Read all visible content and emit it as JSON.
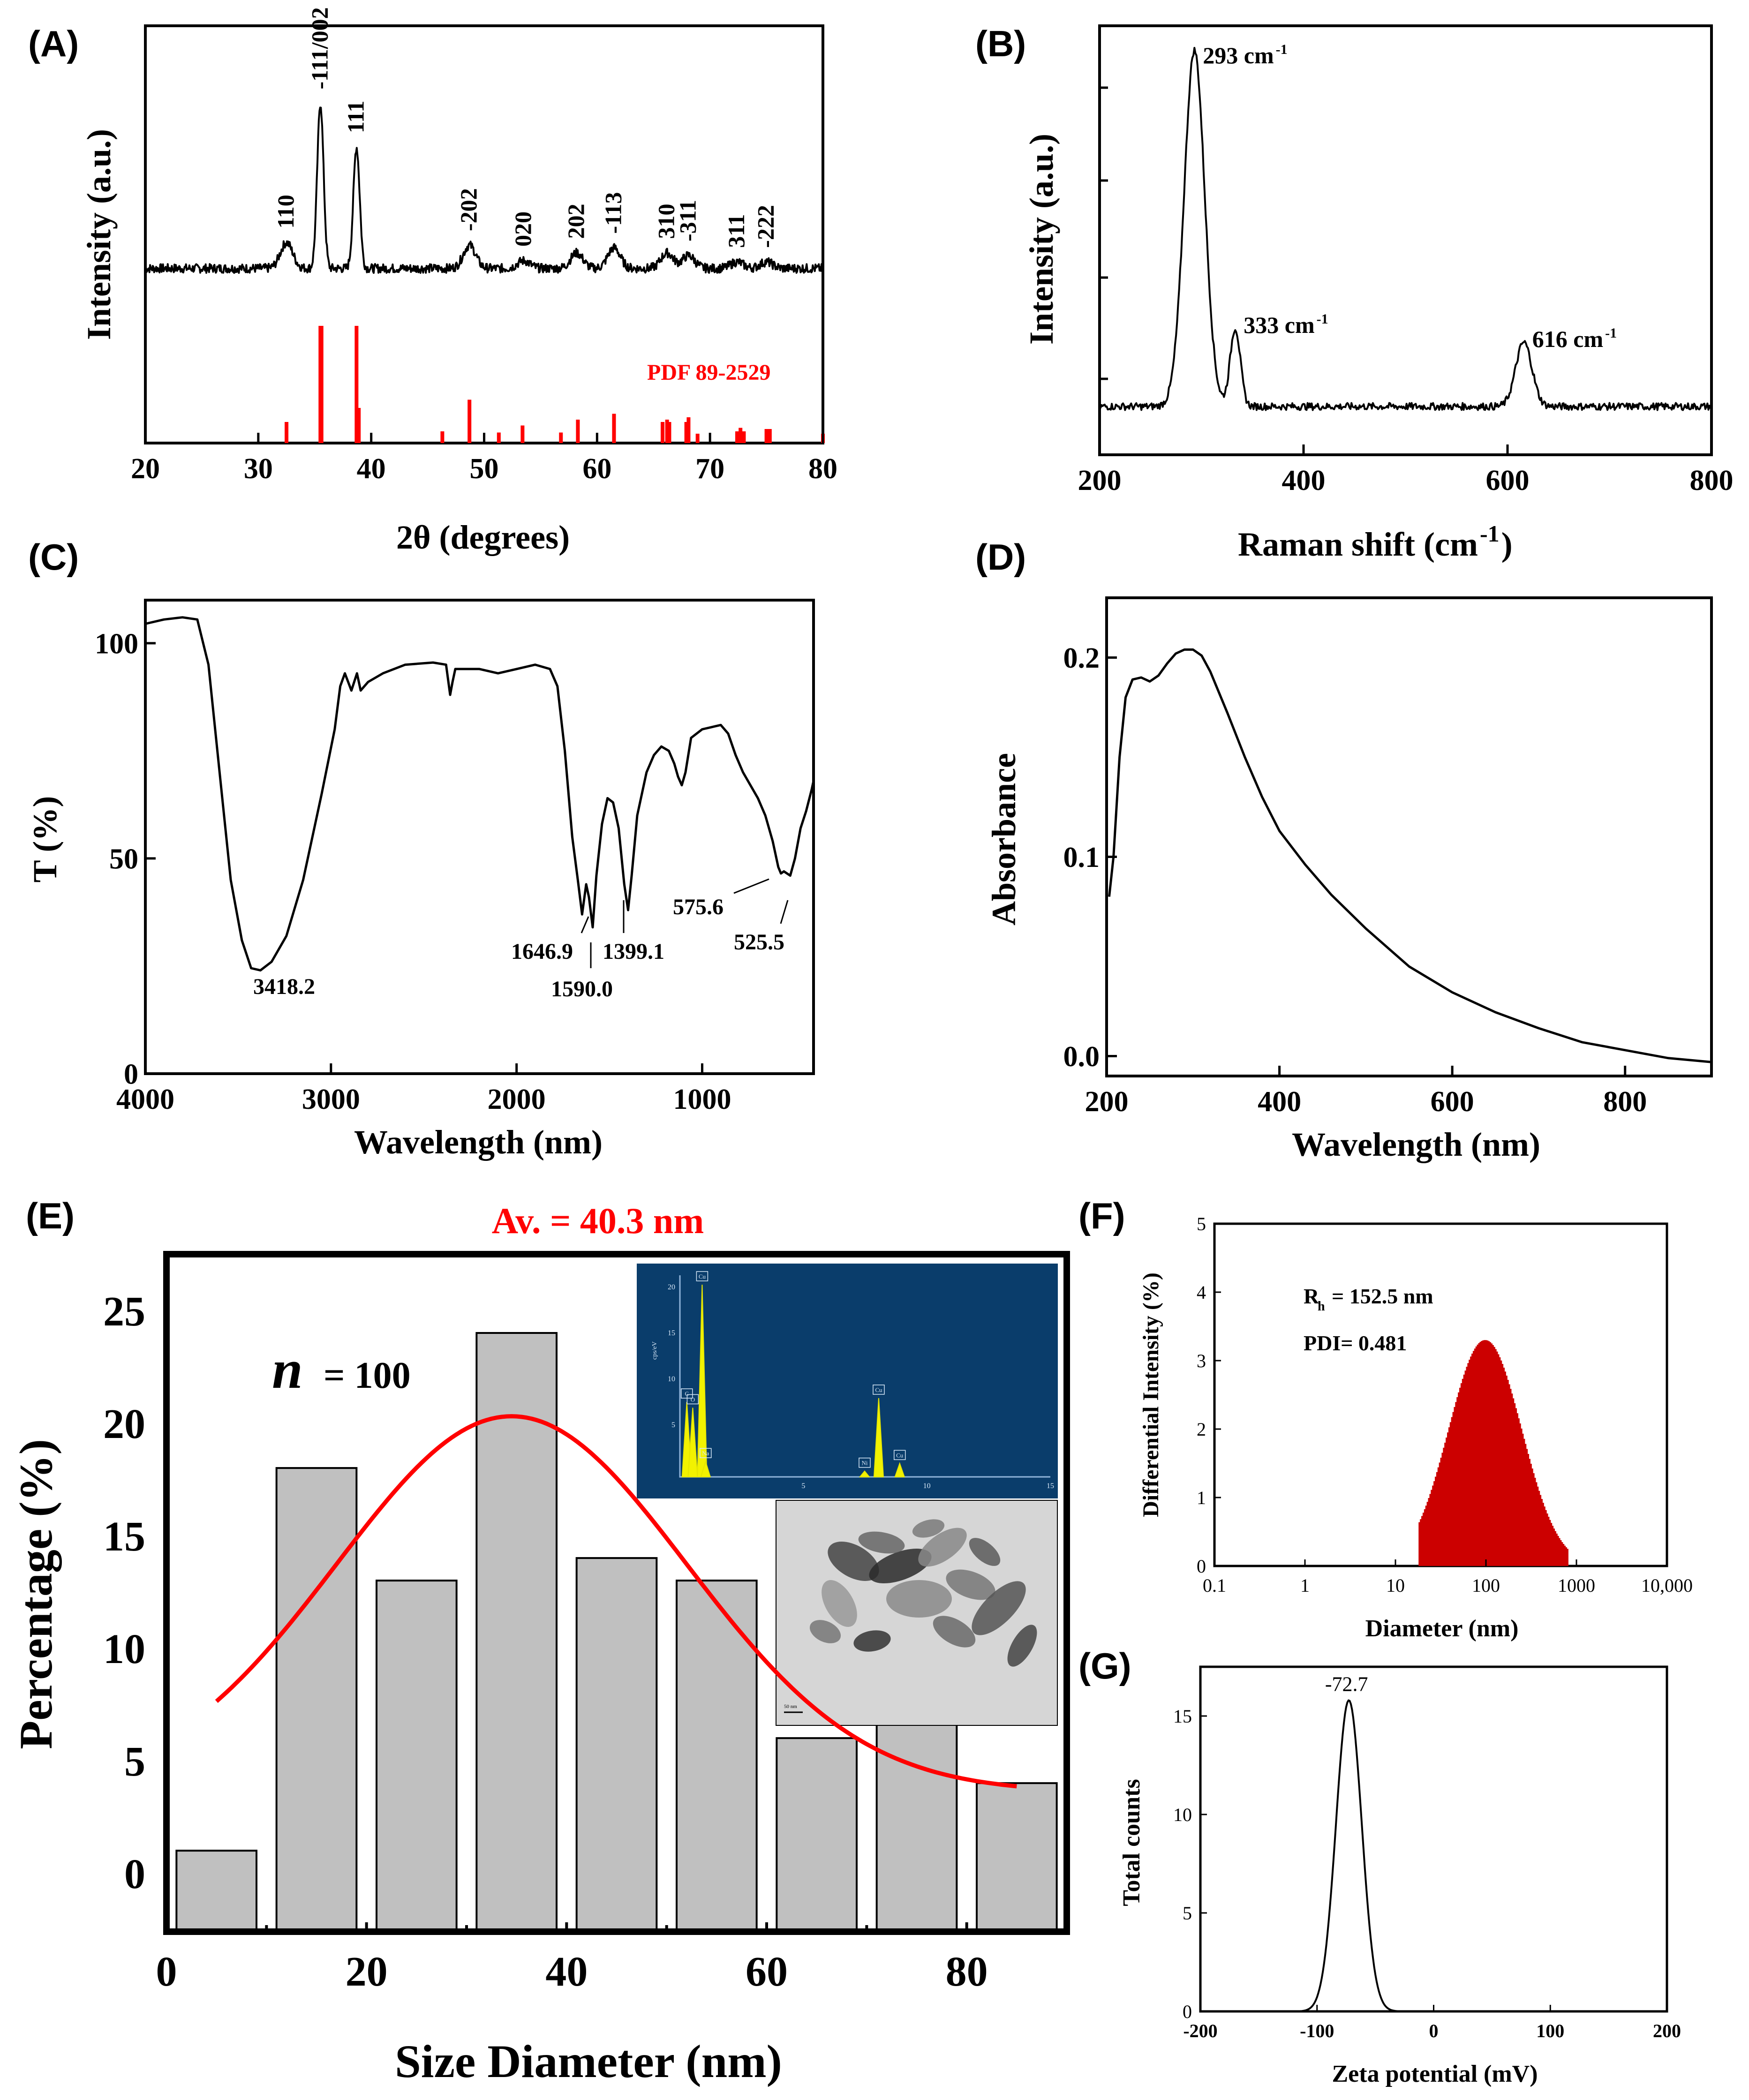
{
  "chart_data": [
    {
      "id": "A",
      "type": "line",
      "panel_label": "(A)",
      "xlabel": "2θ (degrees)",
      "ylabel": "Intensity (a.u.)",
      "xlim": [
        20,
        80
      ],
      "xticks": [
        20,
        30,
        40,
        50,
        60,
        70,
        80
      ],
      "pattern": {
        "baseline": 0.5,
        "peaks": [
          {
            "x": 32.5,
            "y": 1.0
          },
          {
            "x": 35.5,
            "y": 6.4
          },
          {
            "x": 38.7,
            "y": 4.7
          },
          {
            "x": 48.7,
            "y": 0.9
          },
          {
            "x": 53.5,
            "y": 0.3
          },
          {
            "x": 58.2,
            "y": 0.6
          },
          {
            "x": 61.5,
            "y": 0.8
          },
          {
            "x": 66.2,
            "y": 0.6
          },
          {
            "x": 68.1,
            "y": 0.5
          },
          {
            "x": 72.4,
            "y": 0.25
          },
          {
            "x": 75.0,
            "y": 0.25
          }
        ],
        "peak_labels": [
          {
            "x": 32.5,
            "text": "110"
          },
          {
            "x": 35.5,
            "text": "-111/002"
          },
          {
            "x": 38.7,
            "text": "111"
          },
          {
            "x": 48.7,
            "text": "-202"
          },
          {
            "x": 53.5,
            "text": "020"
          },
          {
            "x": 58.2,
            "text": "202"
          },
          {
            "x": 61.5,
            "text": "-113"
          },
          {
            "x": 66.2,
            "text": "310"
          },
          {
            "x": 68.1,
            "text": "-311"
          },
          {
            "x": 72.4,
            "text": "311"
          },
          {
            "x": 75.0,
            "text": "-222"
          }
        ]
      },
      "reference": {
        "label": "PDF 89-2529",
        "color": "#ff0000",
        "positions": [
          32.5,
          35.5,
          35.6,
          38.7,
          38.9,
          46.3,
          48.7,
          51.3,
          53.4,
          56.8,
          58.3,
          61.5,
          65.8,
          66.2,
          66.4,
          67.9,
          68.1,
          68.9,
          72.4,
          72.7,
          73.0,
          75.0,
          75.3,
          80.0
        ],
        "heights": [
          0.18,
          1.0,
          1.0,
          1.0,
          0.3,
          0.1,
          0.37,
          0.09,
          0.15,
          0.09,
          0.2,
          0.25,
          0.18,
          0.2,
          0.18,
          0.18,
          0.22,
          0.08,
          0.1,
          0.13,
          0.1,
          0.12,
          0.12,
          0.08
        ]
      }
    },
    {
      "id": "B",
      "type": "line",
      "panel_label": "(B)",
      "xlabel": "Raman shift (cm",
      "xlabel_sup": "-1",
      "xlabel_end": ")",
      "ylabel": "Intensity (a.u.)",
      "xlim": [
        200,
        800
      ],
      "xticks": [
        200,
        400,
        600,
        800
      ],
      "spectrum": {
        "baseline": 0.05,
        "peaks": [
          {
            "x": 293,
            "y": 1.0,
            "w": 10
          },
          {
            "x": 333,
            "y": 0.22,
            "w": 5
          },
          {
            "x": 616,
            "y": 0.18,
            "w": 8
          }
        ]
      },
      "annotations": [
        {
          "x": 293,
          "text": "293 cm",
          "sup": "-1"
        },
        {
          "x": 333,
          "text": "333 cm",
          "sup": "-1"
        },
        {
          "x": 616,
          "text": "616 cm",
          "sup": "-1"
        }
      ]
    },
    {
      "id": "C",
      "type": "line",
      "panel_label": "(C)",
      "xlabel": "Wavelength (nm)",
      "ylabel": "T (%)",
      "xlim": [
        4000,
        400
      ],
      "ylim": [
        0,
        110
      ],
      "xticks": [
        4000,
        3000,
        2000,
        1000
      ],
      "yticks": [
        0,
        50,
        100
      ],
      "points": [
        [
          4000,
          104.5
        ],
        [
          3900,
          105.5
        ],
        [
          3800,
          106
        ],
        [
          3720,
          105.5
        ],
        [
          3660,
          95
        ],
        [
          3600,
          70
        ],
        [
          3540,
          45
        ],
        [
          3480,
          31
        ],
        [
          3430,
          24.5
        ],
        [
          3380,
          24
        ],
        [
          3320,
          26
        ],
        [
          3240,
          32
        ],
        [
          3150,
          45
        ],
        [
          3050,
          65
        ],
        [
          2980,
          80
        ],
        [
          2950,
          90
        ],
        [
          2925,
          93
        ],
        [
          2890,
          89
        ],
        [
          2860,
          93
        ],
        [
          2840,
          89
        ],
        [
          2800,
          91
        ],
        [
          2720,
          93
        ],
        [
          2600,
          95
        ],
        [
          2450,
          95.5
        ],
        [
          2380,
          95
        ],
        [
          2358,
          88
        ],
        [
          2345,
          91
        ],
        [
          2330,
          94
        ],
        [
          2200,
          94
        ],
        [
          2100,
          93
        ],
        [
          2000,
          94
        ],
        [
          1900,
          95
        ],
        [
          1820,
          94
        ],
        [
          1780,
          90
        ],
        [
          1740,
          75
        ],
        [
          1700,
          55
        ],
        [
          1670,
          45
        ],
        [
          1646.9,
          37
        ],
        [
          1625,
          44
        ],
        [
          1610,
          41
        ],
        [
          1590,
          34
        ],
        [
          1570,
          46
        ],
        [
          1540,
          58
        ],
        [
          1510,
          64
        ],
        [
          1480,
          63
        ],
        [
          1450,
          57
        ],
        [
          1420,
          44
        ],
        [
          1399.1,
          38
        ],
        [
          1380,
          46
        ],
        [
          1350,
          60
        ],
        [
          1300,
          70
        ],
        [
          1260,
          74
        ],
        [
          1220,
          76
        ],
        [
          1180,
          75
        ],
        [
          1150,
          72
        ],
        [
          1130,
          69
        ],
        [
          1110,
          67
        ],
        [
          1090,
          70
        ],
        [
          1060,
          78
        ],
        [
          1000,
          80
        ],
        [
          950,
          80.5
        ],
        [
          900,
          81
        ],
        [
          860,
          79
        ],
        [
          820,
          74
        ],
        [
          780,
          70
        ],
        [
          740,
          67
        ],
        [
          700,
          64
        ],
        [
          660,
          60
        ],
        [
          620,
          54
        ],
        [
          590,
          48
        ],
        [
          575.6,
          46.5
        ],
        [
          560,
          47
        ],
        [
          525.5,
          46
        ],
        [
          500,
          50
        ],
        [
          470,
          57
        ],
        [
          440,
          61
        ],
        [
          410,
          66
        ],
        [
          400,
          68
        ]
      ],
      "annotations": [
        {
          "x": 3418.2,
          "text": "3418.2"
        },
        {
          "x": 1646.9,
          "text": "1646.9"
        },
        {
          "x": 1590.0,
          "text": "1590.0"
        },
        {
          "x": 1399.1,
          "text": "1399.1"
        },
        {
          "x": 575.6,
          "text": "575.6"
        },
        {
          "x": 525.5,
          "text": "525.5"
        }
      ]
    },
    {
      "id": "D",
      "type": "line",
      "panel_label": "(D)",
      "xlabel": "Wavelength (nm)",
      "ylabel": "Absorbance",
      "xlim": [
        200,
        900
      ],
      "ylim": [
        -0.01,
        0.23
      ],
      "xticks": [
        200,
        400,
        600,
        800
      ],
      "yticks": [
        0.0,
        0.1,
        0.2
      ],
      "ytick_labels": [
        "0.0",
        "0.1",
        "0.2"
      ],
      "points": [
        [
          203,
          0.08
        ],
        [
          208,
          0.1
        ],
        [
          215,
          0.15
        ],
        [
          222,
          0.18
        ],
        [
          230,
          0.189
        ],
        [
          240,
          0.19
        ],
        [
          250,
          0.188
        ],
        [
          260,
          0.191
        ],
        [
          270,
          0.197
        ],
        [
          280,
          0.202
        ],
        [
          290,
          0.204
        ],
        [
          300,
          0.204
        ],
        [
          310,
          0.201
        ],
        [
          320,
          0.193
        ],
        [
          340,
          0.172
        ],
        [
          360,
          0.15
        ],
        [
          380,
          0.13
        ],
        [
          400,
          0.113
        ],
        [
          430,
          0.096
        ],
        [
          460,
          0.081
        ],
        [
          500,
          0.064
        ],
        [
          550,
          0.045
        ],
        [
          600,
          0.032
        ],
        [
          650,
          0.022
        ],
        [
          700,
          0.014
        ],
        [
          750,
          0.007
        ],
        [
          800,
          0.003
        ],
        [
          850,
          -0.001
        ],
        [
          900,
          -0.003
        ]
      ]
    },
    {
      "id": "E",
      "type": "bar",
      "panel_label": "(E)",
      "title": "Av. = 40.3 nm",
      "n_label": "n",
      "n_value": "= 100",
      "xlabel": "Size Diameter (nm)",
      "ylabel": "Percentage (%)",
      "xlim": [
        0,
        90
      ],
      "ylim": [
        -2.6,
        27.5
      ],
      "xticks": [
        0,
        20,
        40,
        60,
        80
      ],
      "yticks": [
        0,
        5,
        10,
        15,
        20,
        25
      ],
      "bars": [
        {
          "x0": 1,
          "x1": 9,
          "value": 1
        },
        {
          "x0": 11,
          "x1": 19,
          "value": 18
        },
        {
          "x0": 21,
          "x1": 29,
          "value": 13
        },
        {
          "x0": 31,
          "x1": 39,
          "value": 24
        },
        {
          "x0": 41,
          "x1": 49,
          "value": 14
        },
        {
          "x0": 51,
          "x1": 59,
          "value": 13
        },
        {
          "x0": 61,
          "x1": 69,
          "value": 6
        },
        {
          "x0": 71,
          "x1": 79,
          "value": 7
        },
        {
          "x0": 81,
          "x1": 89,
          "value": 4
        }
      ],
      "fit": {
        "color": "#ff0000",
        "x_range": [
          5,
          85
        ],
        "peak_x": 34.5,
        "peak_y": 20.3,
        "sigma": 17.5,
        "offset": 3.6
      },
      "inset_eds": {
        "bg": "#0a3d6b",
        "peaks": [
          {
            "x": 0.9,
            "h": 1.0,
            "label": "Cu"
          },
          {
            "x": 0.28,
            "h": 0.39,
            "label": "C"
          },
          {
            "x": 0.52,
            "h": 0.36,
            "label": "O"
          },
          {
            "x": 1.04,
            "h": 0.08,
            "label": "Na"
          },
          {
            "x": 8.05,
            "h": 0.41,
            "label": "Cu"
          },
          {
            "x": 7.48,
            "h": 0.03,
            "label": "Ni"
          },
          {
            "x": 8.9,
            "h": 0.07,
            "label": "Cu"
          }
        ],
        "ylabel": "cps/eV",
        "yticks": [
          "20",
          "15",
          "10",
          "5"
        ],
        "xticks": [
          "5",
          "10",
          "15"
        ]
      },
      "inset_tem": {
        "scale_text": "50 nm"
      }
    },
    {
      "id": "F",
      "type": "bar",
      "panel_label": "(F)",
      "xlabel": "Diameter (nm)",
      "ylabel": "Differential Intensity (%)",
      "xscale": "log",
      "xlim": [
        0.1,
        10000
      ],
      "xticks": [
        0.1,
        1,
        10,
        100,
        1000,
        10000
      ],
      "xtick_labels": [
        "0.1",
        "1",
        "10",
        "100",
        "1000",
        "10,000"
      ],
      "ylim": [
        0,
        5
      ],
      "yticks": [
        0,
        1,
        2,
        3,
        4,
        5
      ],
      "distribution": {
        "log_center": 1.98,
        "log_sigma": 0.4,
        "peak": 3.3,
        "x_min": 18,
        "x_max": 800,
        "color": "#cc0000"
      },
      "annotations": {
        "rh": "R",
        "rh_sub": "h",
        "rh_value": "= 152.5 nm",
        "pdi": "PDI= 0.481"
      }
    },
    {
      "id": "G",
      "type": "line",
      "panel_label": "(G)",
      "xlabel": "Zeta potential (mV)",
      "ylabel": "Total counts",
      "xlim": [
        -200,
        200
      ],
      "ylim": [
        0,
        17.5
      ],
      "xticks": [
        -200,
        -100,
        0,
        100,
        200
      ],
      "yticks": [
        0,
        5,
        10,
        15
      ],
      "peak": {
        "center": -72.7,
        "sigma": 11,
        "height": 15.8
      },
      "annotation": "-72.7"
    }
  ]
}
